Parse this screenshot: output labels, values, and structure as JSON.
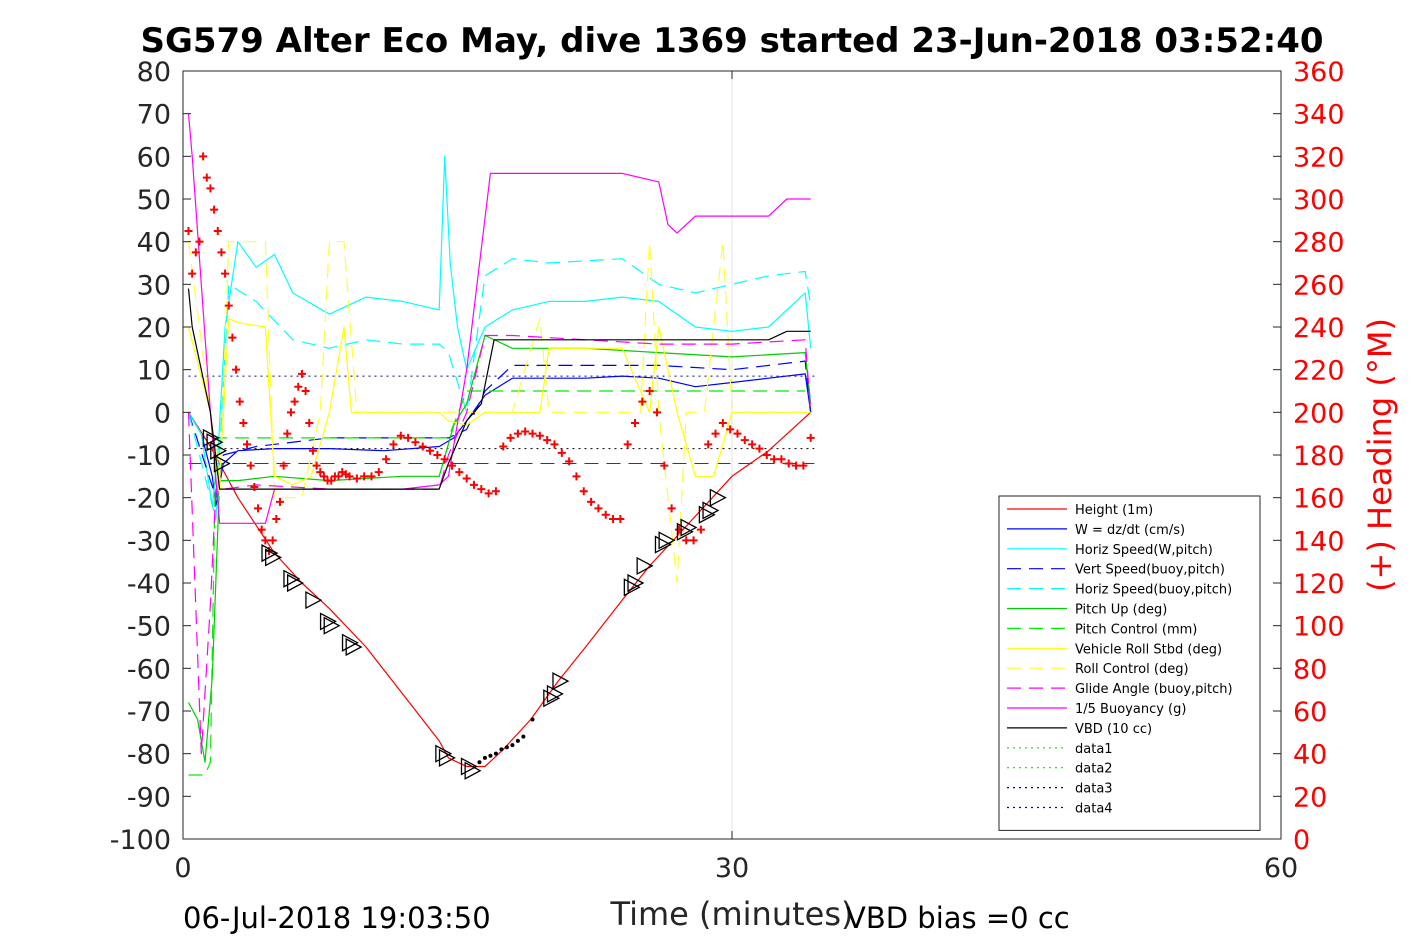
{
  "chart_data": {
    "type": "line",
    "title": "SG579 Alter Eco May, dive 1369 started 23-Jun-2018 03:52:40",
    "xlabel": "Time (minutes)",
    "ylabel_right": "(+) Heading (°M)",
    "footer_left": "06-Jul-2018 19:03:50",
    "footer_right": "VBD bias =0 cc",
    "xlim": [
      0,
      60
    ],
    "ylim": [
      -100,
      80
    ],
    "ylim_right": [
      0,
      360
    ],
    "xticks": [
      0,
      30,
      60
    ],
    "yticks": [
      -100,
      -90,
      -80,
      -70,
      -60,
      -50,
      -40,
      -30,
      -20,
      -10,
      0,
      10,
      20,
      30,
      40,
      50,
      60,
      70,
      80
    ],
    "yticks_right": [
      0,
      20,
      40,
      60,
      80,
      100,
      120,
      140,
      160,
      180,
      200,
      220,
      240,
      260,
      280,
      300,
      320,
      340,
      360
    ],
    "grid": "x-only",
    "legend_position": "bottom-right",
    "series": [
      {
        "name": "Height (1m)",
        "color": "#ff0000",
        "dash": "solid",
        "x": [
          0.3,
          1.5,
          3,
          5,
          6.5,
          8,
          10,
          12,
          14,
          14.5,
          15.5,
          16.5,
          17.5,
          19,
          20.5,
          22,
          24,
          25.5,
          27,
          28.5,
          30,
          32,
          34.3
        ],
        "y": [
          0,
          -8,
          -20,
          -33,
          -40,
          -46,
          -55,
          -66,
          -77,
          -81,
          -83,
          -83,
          -79,
          -72,
          -63,
          -55,
          -44,
          -36,
          -29,
          -22,
          -15,
          -9,
          0
        ]
      },
      {
        "name": "W = dz/dt (cm/s)",
        "color": "#0000ff",
        "dash": "solid",
        "x": [
          0.3,
          1,
          1.6,
          1.8,
          2.2,
          3,
          5,
          8,
          11,
          14,
          14.8,
          15.5,
          16.5,
          18,
          20,
          22,
          24,
          26,
          28,
          30,
          32,
          34,
          34.3
        ],
        "y": [
          0,
          -5,
          -15,
          -22,
          -12,
          -9,
          -8.5,
          -8.5,
          -9,
          -8,
          -6,
          -2,
          4,
          8,
          8,
          8,
          8.5,
          8,
          6,
          7,
          8,
          9,
          0
        ]
      },
      {
        "name": "Horiz Speed(W,pitch)",
        "color": "#00ffff",
        "dash": "solid",
        "x": [
          0.3,
          1,
          1.6,
          1.9,
          2.3,
          3,
          4,
          5,
          6,
          8,
          10,
          12,
          14,
          14.3,
          14.6,
          15,
          15.5,
          16.5,
          18,
          20,
          22,
          24,
          26,
          28,
          30,
          32,
          33,
          34,
          34.3
        ],
        "y": [
          0,
          -5,
          -22,
          -10,
          20,
          40,
          34,
          37,
          28,
          23,
          27,
          26,
          24,
          60,
          35,
          20,
          10,
          20,
          24,
          26,
          26,
          27,
          26,
          20,
          19,
          20,
          24,
          28,
          15
        ]
      },
      {
        "name": "Vert Speed(buoy,pitch)",
        "color": "#0000ff",
        "dash": "14,8",
        "x": [
          0.3,
          1.8,
          2.2,
          4,
          8,
          12,
          14.5,
          15.5,
          16.5,
          18,
          22,
          26,
          30,
          34,
          34.3
        ],
        "y": [
          0,
          -20,
          -10,
          -8,
          -6,
          -6,
          -6,
          -4,
          5,
          11,
          11,
          11,
          10,
          12,
          0
        ]
      },
      {
        "name": "Horiz Speed(buoy,pitch)",
        "color": "#00ffff",
        "dash": "14,8",
        "x": [
          0.3,
          1.8,
          2.5,
          4,
          6,
          8,
          10,
          12,
          14,
          14.5,
          15.5,
          16.5,
          18,
          20,
          24,
          26,
          28,
          30,
          32,
          34,
          34.3
        ],
        "y": [
          0,
          -25,
          30,
          26,
          17,
          15,
          17,
          16,
          16,
          14,
          0,
          32,
          36,
          35,
          36,
          30,
          28,
          30,
          32,
          33,
          25
        ]
      },
      {
        "name": "Pitch Up (deg)",
        "color": "#00cc00",
        "dash": "solid",
        "x": [
          0.3,
          0.8,
          1.2,
          1.6,
          2,
          3,
          5,
          8,
          12,
          14,
          14.8,
          15.5,
          16.5,
          18,
          22,
          26,
          30,
          34,
          34.3
        ],
        "y": [
          -68,
          -72,
          -82,
          -62,
          -16,
          -16,
          -15,
          -16,
          -15,
          -15,
          -3,
          2,
          18,
          15,
          15,
          14,
          13,
          14,
          2
        ]
      },
      {
        "name": "Pitch Control (mm)",
        "color": "#00ee00",
        "dash": "14,8",
        "x": [
          0.3,
          1.2,
          1.5,
          1.8,
          2.2,
          5,
          8,
          12,
          14,
          14.5,
          15.5,
          16,
          18,
          22,
          26,
          30,
          34
        ],
        "y": [
          -85,
          -85,
          -82,
          -6,
          -6,
          -6,
          -6,
          -6,
          -6,
          -6,
          5,
          5,
          5,
          5,
          5,
          5,
          5
        ]
      },
      {
        "name": "Vehicle Roll Stbd (deg)",
        "color": "#ffff00",
        "dash": "solid",
        "x": [
          0.3,
          1.5,
          2,
          2.5,
          3,
          4.5,
          5,
          6,
          7,
          8,
          8.8,
          9.2,
          12,
          14,
          14.5,
          15.5,
          16.5,
          18,
          19.5,
          20,
          24,
          25.5,
          26,
          27,
          28,
          29,
          30,
          32,
          34,
          34.3
        ],
        "y": [
          20,
          0,
          -16,
          22,
          21,
          20,
          -15,
          -17,
          -15,
          0,
          20,
          0,
          0,
          0,
          -2,
          -3,
          0,
          0,
          0,
          15,
          15,
          0,
          20,
          0,
          -15,
          -15,
          0,
          0,
          0,
          0
        ]
      },
      {
        "name": "Roll Control (deg)",
        "color": "#ffff33",
        "dash": "14,8",
        "x": [
          0.3,
          1.5,
          2,
          2.5,
          4.5,
          5,
          6.5,
          7.5,
          8,
          8.8,
          9.5,
          14,
          14.5,
          15.5,
          16.5,
          18,
          19.5,
          20,
          25,
          25.5,
          26,
          27,
          27.5,
          28.5,
          29.5,
          30,
          32,
          34
        ],
        "y": [
          40,
          0,
          -20,
          40,
          40,
          -20,
          -20,
          0,
          40,
          40,
          0,
          0,
          0,
          0,
          0,
          0,
          22,
          0,
          0,
          40,
          0,
          -40,
          0,
          0,
          40,
          0,
          0,
          0
        ]
      },
      {
        "name": "Glide Angle (buoy,pitch)",
        "color": "#ff00ff",
        "dash": "14,8",
        "x": [
          0.3,
          1,
          1.5,
          1.8,
          2.2,
          4,
          8,
          12,
          14,
          14.5,
          15.5,
          16.5,
          18,
          22,
          26,
          30,
          34,
          34.3
        ],
        "y": [
          0,
          -80,
          -45,
          -18,
          -18,
          -17,
          -18,
          -18,
          -18,
          -10,
          0,
          18,
          18,
          17,
          16,
          16,
          17,
          0
        ]
      },
      {
        "name": "1/5 Buoyancy (g)",
        "color": "#ff00ff",
        "dash": "solid",
        "x": [
          0.3,
          0.5,
          1.5,
          2,
          4.5,
          5,
          8,
          12,
          14,
          14.5,
          15.5,
          16.8,
          18,
          20,
          24,
          26,
          26.5,
          27,
          28,
          30,
          32,
          33,
          34.3
        ],
        "y": [
          70,
          60,
          0,
          -26,
          -26,
          -18,
          -18,
          -18,
          -17,
          -15,
          10,
          56,
          56,
          56,
          56,
          54,
          44,
          42,
          46,
          46,
          46,
          50,
          50
        ]
      },
      {
        "name": "VBD (10 cc)",
        "color": "#000000",
        "dash": "solid",
        "x": [
          0.3,
          0.5,
          1.5,
          2,
          4,
          6,
          8,
          10,
          12,
          14,
          14.5,
          15.5,
          16.3,
          17,
          18,
          20,
          22,
          24,
          26,
          28,
          30,
          32,
          33,
          34.3
        ],
        "y": [
          29,
          20,
          0,
          -18,
          -18,
          -18,
          -18,
          -18,
          -18,
          -18,
          -12,
          -2,
          2,
          17,
          17,
          17,
          17,
          17,
          17,
          17,
          17,
          17,
          19,
          19
        ]
      },
      {
        "name": "data1",
        "color": "#00ee00",
        "dash": "2,4"
      },
      {
        "name": "data2",
        "color": "#00ee00",
        "dash": "2,4"
      },
      {
        "name": "data3",
        "color": "#0000aa",
        "dash": "2,4"
      },
      {
        "name": "data4",
        "color": "#0000aa",
        "dash": "2,4"
      }
    ],
    "reference_lines": [
      {
        "y": 8.5,
        "color": "#0000aa",
        "dash": "2,4",
        "x": [
          0.3,
          34.5
        ]
      },
      {
        "y": -8.5,
        "color": "#000000",
        "dash": "2,4",
        "x": [
          0.3,
          34.5
        ]
      },
      {
        "y": -12,
        "color": "#cc0000",
        "dash": "14,8",
        "x": [
          0.3,
          34.5
        ]
      }
    ],
    "heading_points": {
      "color": "#ff0000",
      "x": [
        0.3,
        0.5,
        0.7,
        0.9,
        1.1,
        1.3,
        1.5,
        1.7,
        1.9,
        2.1,
        2.3,
        2.5,
        2.7,
        2.9,
        3.1,
        3.3,
        3.5,
        3.7,
        3.9,
        4.1,
        4.3,
        4.5,
        4.7,
        4.9,
        5.1,
        5.3,
        5.5,
        5.7,
        5.9,
        6.1,
        6.3,
        6.5,
        6.7,
        6.9,
        7.1,
        7.3,
        7.5,
        7.7,
        7.9,
        8.1,
        8.3,
        8.5,
        8.7,
        8.9,
        9.1,
        9.5,
        9.9,
        10.3,
        10.7,
        11.1,
        11.5,
        11.9,
        12.3,
        12.7,
        13.1,
        13.5,
        13.9,
        14.3,
        14.7,
        15.1,
        15.5,
        15.9,
        16.3,
        16.7,
        17.1,
        17.5,
        17.9,
        18.3,
        18.7,
        19.1,
        19.5,
        19.9,
        20.3,
        20.7,
        21.1,
        21.5,
        21.9,
        22.3,
        22.7,
        23.1,
        23.5,
        23.9,
        24.3,
        24.7,
        25.1,
        25.5,
        25.9,
        26.3,
        26.7,
        27.1,
        27.5,
        27.9,
        28.3,
        28.7,
        29.1,
        29.5,
        29.9,
        30.3,
        30.7,
        31.1,
        31.5,
        31.9,
        32.3,
        32.7,
        33.1,
        33.5,
        33.9,
        34.3
      ],
      "y": [
        285,
        265,
        275,
        280,
        320,
        310,
        305,
        295,
        285,
        275,
        265,
        250,
        235,
        220,
        205,
        195,
        185,
        175,
        165,
        155,
        145,
        140,
        135,
        140,
        150,
        158,
        175,
        190,
        200,
        205,
        212,
        218,
        210,
        195,
        182,
        175,
        172,
        170,
        168,
        168,
        170,
        170,
        172,
        171,
        170,
        169,
        170,
        170,
        172,
        178,
        185,
        189,
        188,
        186,
        184,
        182,
        180,
        178,
        175,
        172,
        169,
        166,
        164,
        162,
        163,
        184,
        188,
        190,
        191,
        190,
        189,
        187,
        185,
        181,
        177,
        170,
        163,
        158,
        155,
        152,
        150,
        150,
        185,
        195,
        205,
        210,
        200,
        175,
        155,
        145,
        140,
        140,
        145,
        185,
        190,
        195,
        192,
        190,
        187,
        185,
        183,
        180,
        178,
        178,
        176,
        175,
        175,
        188
      ]
    },
    "triangle_markers": {
      "color": "#000000",
      "x": [
        1.5,
        1.7,
        1.9,
        2.1,
        4.7,
        4.9,
        5.9,
        6.1,
        7.1,
        7.9,
        8.1,
        9.1,
        9.3,
        14.2,
        14.4,
        15.6,
        15.8,
        20.1,
        20.3,
        20.6,
        24.5,
        24.7,
        25.2,
        26.2,
        26.4,
        27.4,
        27.6,
        28.6,
        28.8,
        29.2
      ],
      "y": [
        -6,
        -7,
        -9,
        -12,
        -33,
        -34,
        -39,
        -40,
        -44,
        -49,
        -50,
        -54,
        -55,
        -80,
        -81,
        -83,
        -84,
        -67,
        -66,
        -63,
        -41,
        -40,
        -36,
        -31,
        -30,
        -28,
        -27,
        -24,
        -23,
        -20
      ],
      "dots": {
        "x": [
          16.2,
          16.5,
          16.8,
          17.1,
          17.4,
          17.7,
          18.0,
          18.3,
          18.6,
          19.1
        ],
        "y": [
          -82,
          -81,
          -80.5,
          -80,
          -79,
          -78.5,
          -78,
          -77,
          -76,
          -72
        ]
      }
    }
  }
}
